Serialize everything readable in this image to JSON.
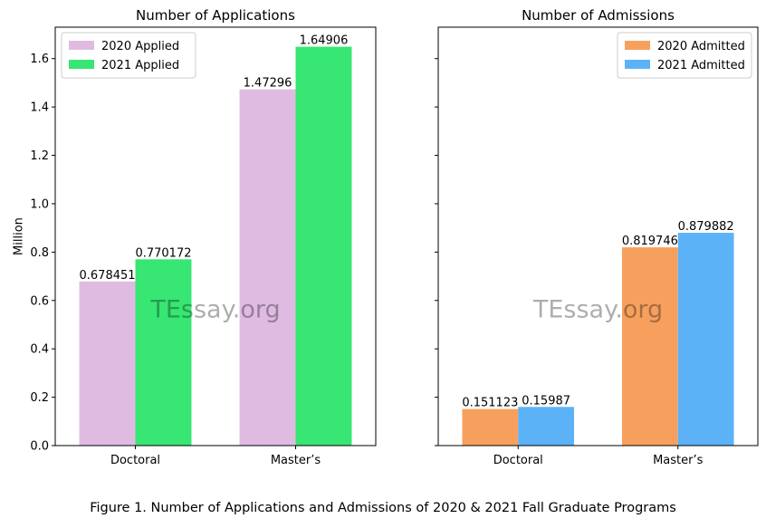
{
  "caption": "Figure 1. Number of Applications and Admissions of 2020 & 2021 Fall Graduate Programs",
  "watermark": "TEssay.org",
  "chart_data": [
    {
      "type": "bar",
      "title": "Number of Applications",
      "xlabel": "",
      "ylabel": "Million",
      "categories": [
        "Doctoral",
        "Master’s"
      ],
      "series": [
        {
          "name": "2020 Applied",
          "values": [
            0.678451,
            1.47296
          ],
          "color": "#dfbbe2",
          "labels": [
            "0.678451",
            "1.47296"
          ]
        },
        {
          "name": "2021 Applied",
          "values": [
            0.770172,
            1.64906
          ],
          "color": "#37e673",
          "labels": [
            "0.770172",
            "1.64906"
          ]
        }
      ],
      "ylim": [
        0,
        1.73
      ],
      "yticks": [
        "0.0",
        "0.2",
        "0.4",
        "0.6",
        "0.8",
        "1.0",
        "1.2",
        "1.4",
        "1.6"
      ],
      "legend": "top-left",
      "grid": false
    },
    {
      "type": "bar",
      "title": "Number of Admissions",
      "xlabel": "",
      "ylabel": "",
      "categories": [
        "Doctoral",
        "Master’s"
      ],
      "series": [
        {
          "name": "2020 Admitted",
          "values": [
            0.151123,
            0.819746
          ],
          "color": "#f7a05e",
          "labels": [
            "0.151123",
            "0.819746"
          ]
        },
        {
          "name": "2021 Admitted",
          "values": [
            0.15987,
            0.879882
          ],
          "color": "#5cb2f7",
          "labels": [
            "0.15987",
            "0.879882"
          ]
        }
      ],
      "ylim": [
        0,
        1.73
      ],
      "yticks": [],
      "legend": "top-right",
      "grid": false
    }
  ]
}
